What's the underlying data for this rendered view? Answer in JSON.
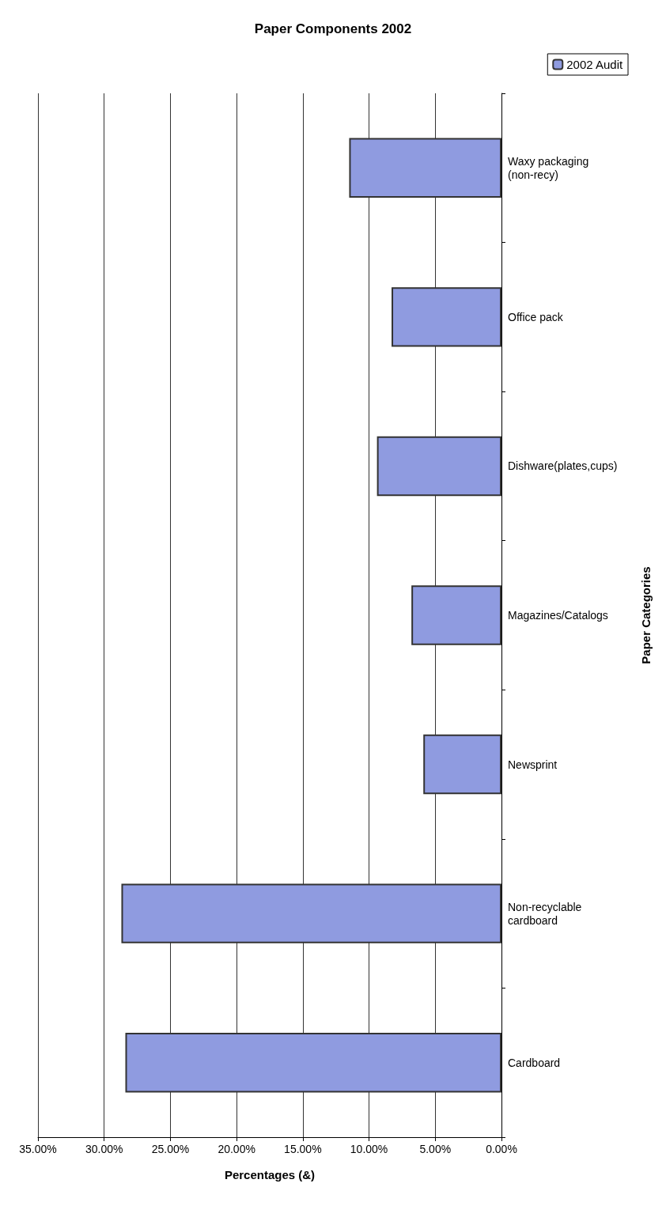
{
  "chart_data": {
    "type": "bar",
    "title": "Paper Components 2002",
    "orientation": "horizontal",
    "xlabel": "Percentages (&)",
    "ylabel": "Paper Categories",
    "categories": [
      "Waxy packaging\n(non-recy)",
      "Office pack",
      "Dishware(plates,cups)",
      "Magazines/Catalogs",
      "Newsprint",
      "Non-recyclable\ncardboard",
      "Cardboard"
    ],
    "series": [
      {
        "name": "2002 Audit",
        "color": "#8f9be0",
        "values": [
          11.5,
          8.3,
          9.4,
          6.8,
          5.9,
          28.7,
          28.4
        ]
      }
    ],
    "xlim": [
      35,
      0
    ],
    "xticks": [
      {
        "value": 35,
        "label": "35.00%"
      },
      {
        "value": 30,
        "label": "30.00%"
      },
      {
        "value": 25,
        "label": "25.00%"
      },
      {
        "value": 20,
        "label": "20.00%"
      },
      {
        "value": 15,
        "label": "15.00%"
      },
      {
        "value": 10,
        "label": "10.00%"
      },
      {
        "value": 5,
        "label": "5.00%"
      },
      {
        "value": 0,
        "label": "0.00%"
      }
    ],
    "grid": "x",
    "legend": "top right"
  }
}
